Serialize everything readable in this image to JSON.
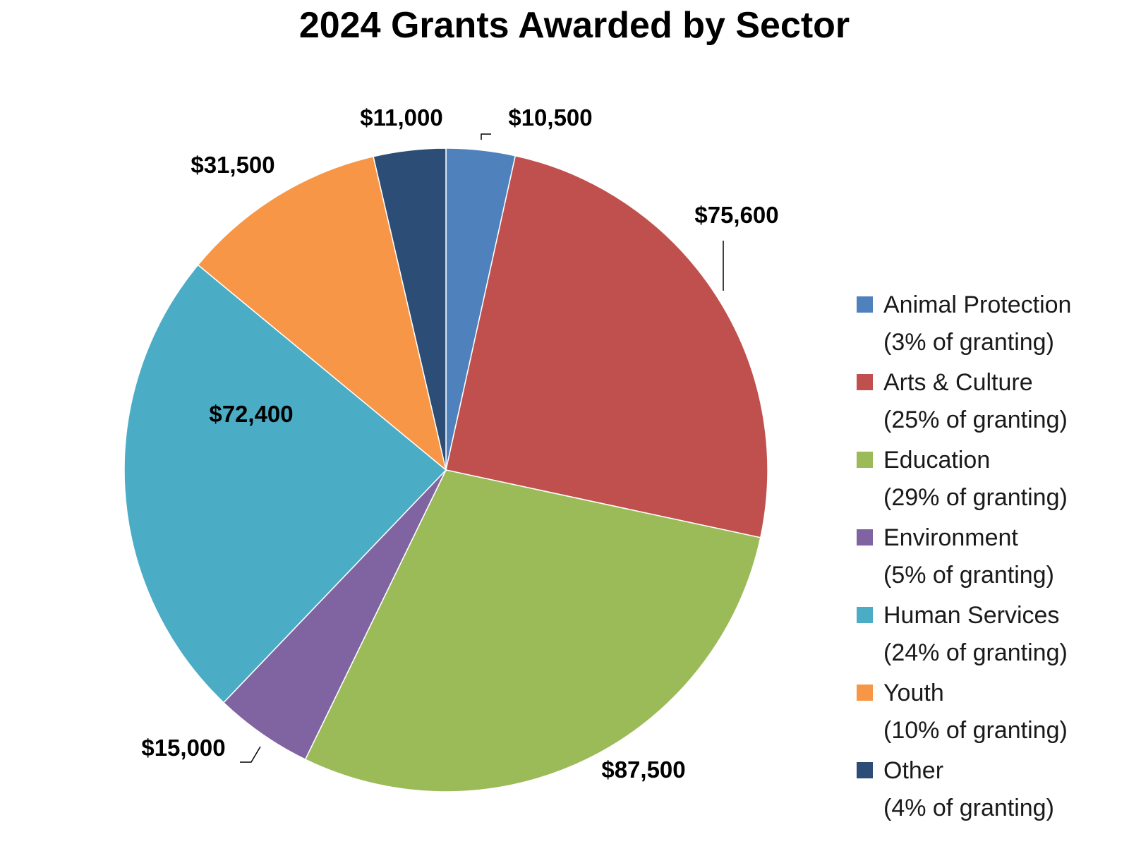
{
  "chart_data": {
    "type": "pie",
    "title": "2024 Grants Awarded by Sector",
    "start_angle_deg": 0,
    "direction": "clockwise",
    "legend_position": "right",
    "slices": [
      {
        "label": "Animal Protection",
        "value": 10500,
        "value_label": "$10,500",
        "legend_share": "(3% of granting)",
        "color": "#4f81bd"
      },
      {
        "label": "Arts & Culture",
        "value": 75600,
        "value_label": "$75,600",
        "legend_share": "(25% of granting)",
        "color": "#c0504d"
      },
      {
        "label": "Education",
        "value": 87500,
        "value_label": "$87,500",
        "legend_share": "(29% of granting)",
        "color": "#9bbb59"
      },
      {
        "label": "Environment",
        "value": 15000,
        "value_label": "$15,000",
        "legend_share": "(5% of granting)",
        "color": "#8064a2"
      },
      {
        "label": "Human Services",
        "value": 72400,
        "value_label": "$72,400",
        "legend_share": "(24% of granting)",
        "color": "#4bacc6"
      },
      {
        "label": "Youth",
        "value": 31500,
        "value_label": "$31,500",
        "legend_share": "(10% of granting)",
        "color": "#f79646"
      },
      {
        "label": "Other",
        "value": 11000,
        "value_label": "$11,000",
        "legend_share": "(4% of granting)",
        "color": "#2c4d75"
      }
    ]
  }
}
